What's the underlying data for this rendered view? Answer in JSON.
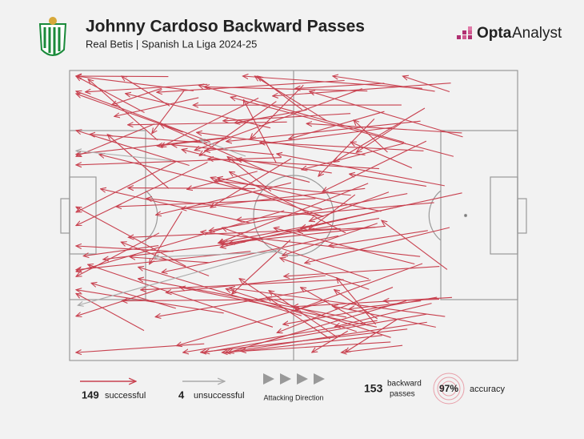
{
  "header": {
    "title": "Johnny Cardoso Backward Passes",
    "subtitle": "Real Betis | Spanish La Liga 2024-25"
  },
  "brand": {
    "name": [
      "Opta",
      "Analyst"
    ]
  },
  "legend": {
    "successful": {
      "count": 149,
      "label": "successful"
    },
    "unsuccessful": {
      "count": 4,
      "label": "unsuccessful"
    },
    "direction": "Attacking Direction"
  },
  "stats": {
    "total": 153,
    "total_label": [
      "backward",
      "passes"
    ],
    "accuracy": "97%",
    "accuracy_label": "accuracy"
  }
}
